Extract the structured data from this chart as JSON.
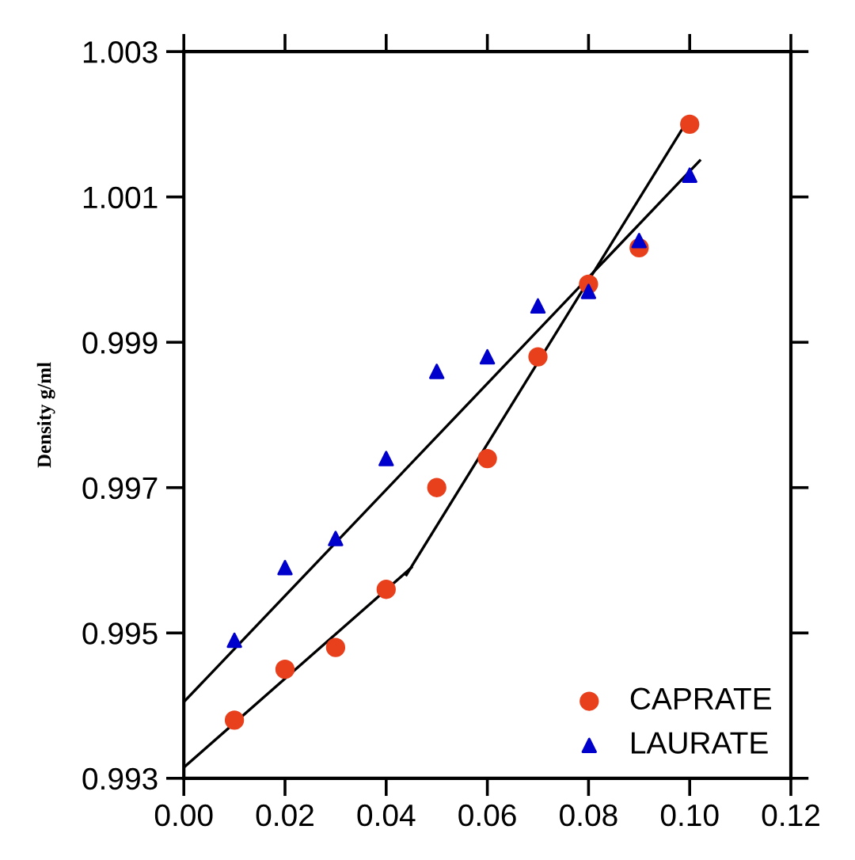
{
  "chart_data": {
    "type": "scatter",
    "ylabel": "Density g/ml",
    "x": [
      0.01,
      0.02,
      0.03,
      0.04,
      0.05,
      0.06,
      0.07,
      0.08,
      0.09,
      0.1
    ],
    "series": [
      {
        "name": "CAPRATE",
        "color": "#e8401c",
        "marker": "circle",
        "values": [
          0.9938,
          0.9945,
          0.9948,
          0.9956,
          0.997,
          0.9974,
          0.9988,
          0.9998,
          1.0003,
          1.002
        ]
      },
      {
        "name": "LAURATE",
        "color": "#0000cc",
        "marker": "triangle",
        "values": [
          0.9949,
          0.9959,
          0.9963,
          0.9974,
          0.9986,
          0.9988,
          0.9995,
          0.9997,
          1.0004,
          1.0013
        ]
      },
      {
        "type": "line",
        "color": "#000000",
        "marker": "none",
        "x": [
          0.0,
          0.045
        ],
        "values": [
          0.99315,
          0.9959
        ]
      },
      {
        "type": "line",
        "color": "#000000",
        "marker": "none",
        "x": [
          0.044,
          0.1
        ],
        "values": [
          0.9958,
          1.0021
        ]
      },
      {
        "type": "line",
        "color": "#000000",
        "marker": "none",
        "x": [
          0.0,
          0.102
        ],
        "values": [
          0.99405,
          1.0015
        ]
      }
    ],
    "xlim": [
      0.0,
      0.12
    ],
    "xticks": [
      {
        "value": 0.0,
        "label": "0.00"
      },
      {
        "value": 0.02,
        "label": "0.02"
      },
      {
        "value": 0.04,
        "label": "0.04"
      },
      {
        "value": 0.06,
        "label": "0.06"
      },
      {
        "value": 0.08,
        "label": "0.08"
      },
      {
        "value": 0.1,
        "label": "0.10"
      },
      {
        "value": 0.12,
        "label": "0.12"
      }
    ],
    "ylim": [
      0.993,
      1.003
    ],
    "yticks": [
      0.993,
      0.995,
      0.997,
      0.999,
      1.001,
      1.003
    ],
    "grid": false,
    "legend": "bottom right"
  }
}
